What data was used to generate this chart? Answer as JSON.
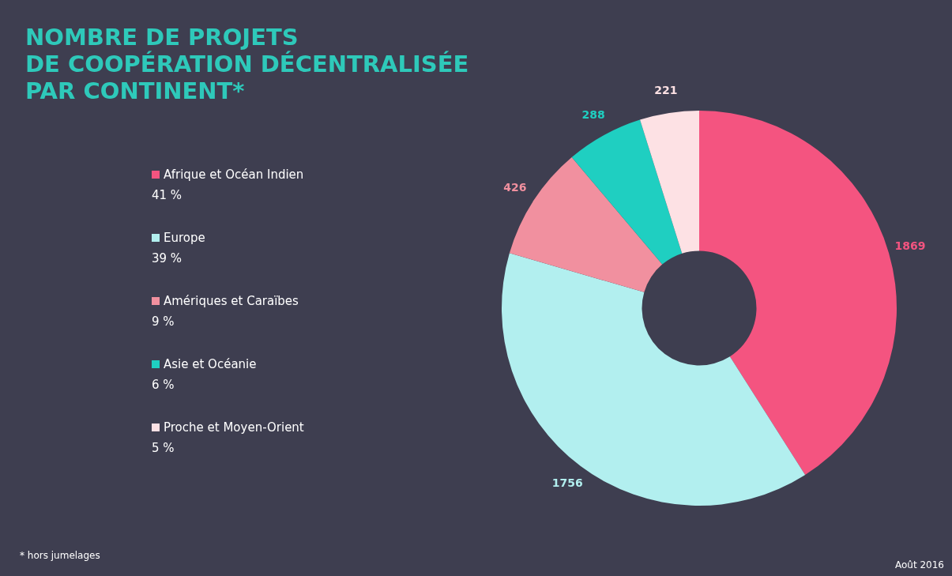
{
  "chart_data": {
    "type": "donut",
    "title": "NOMBRE DE PROJETS\nDE COOPÉRATION DÉCENTRALISÉE\nPAR CONTINENT*",
    "categories": [
      "Afrique et Océan Indien",
      "Europe",
      "Amériques et Caraïbes",
      "Asie et Océanie",
      "Proche et Moyen-Orient"
    ],
    "values": [
      1869,
      1756,
      426,
      288,
      221
    ],
    "colors": [
      "#f45480",
      "#b2efef",
      "#f1909f",
      "#1fcfc1",
      "#fde1e4"
    ],
    "data_labels": true,
    "legend": "left",
    "annotations": [
      "41 %",
      "39 %",
      "9 %",
      "6 %",
      "5 %",
      "* hors jumelages",
      "Août 2016"
    ]
  }
}
